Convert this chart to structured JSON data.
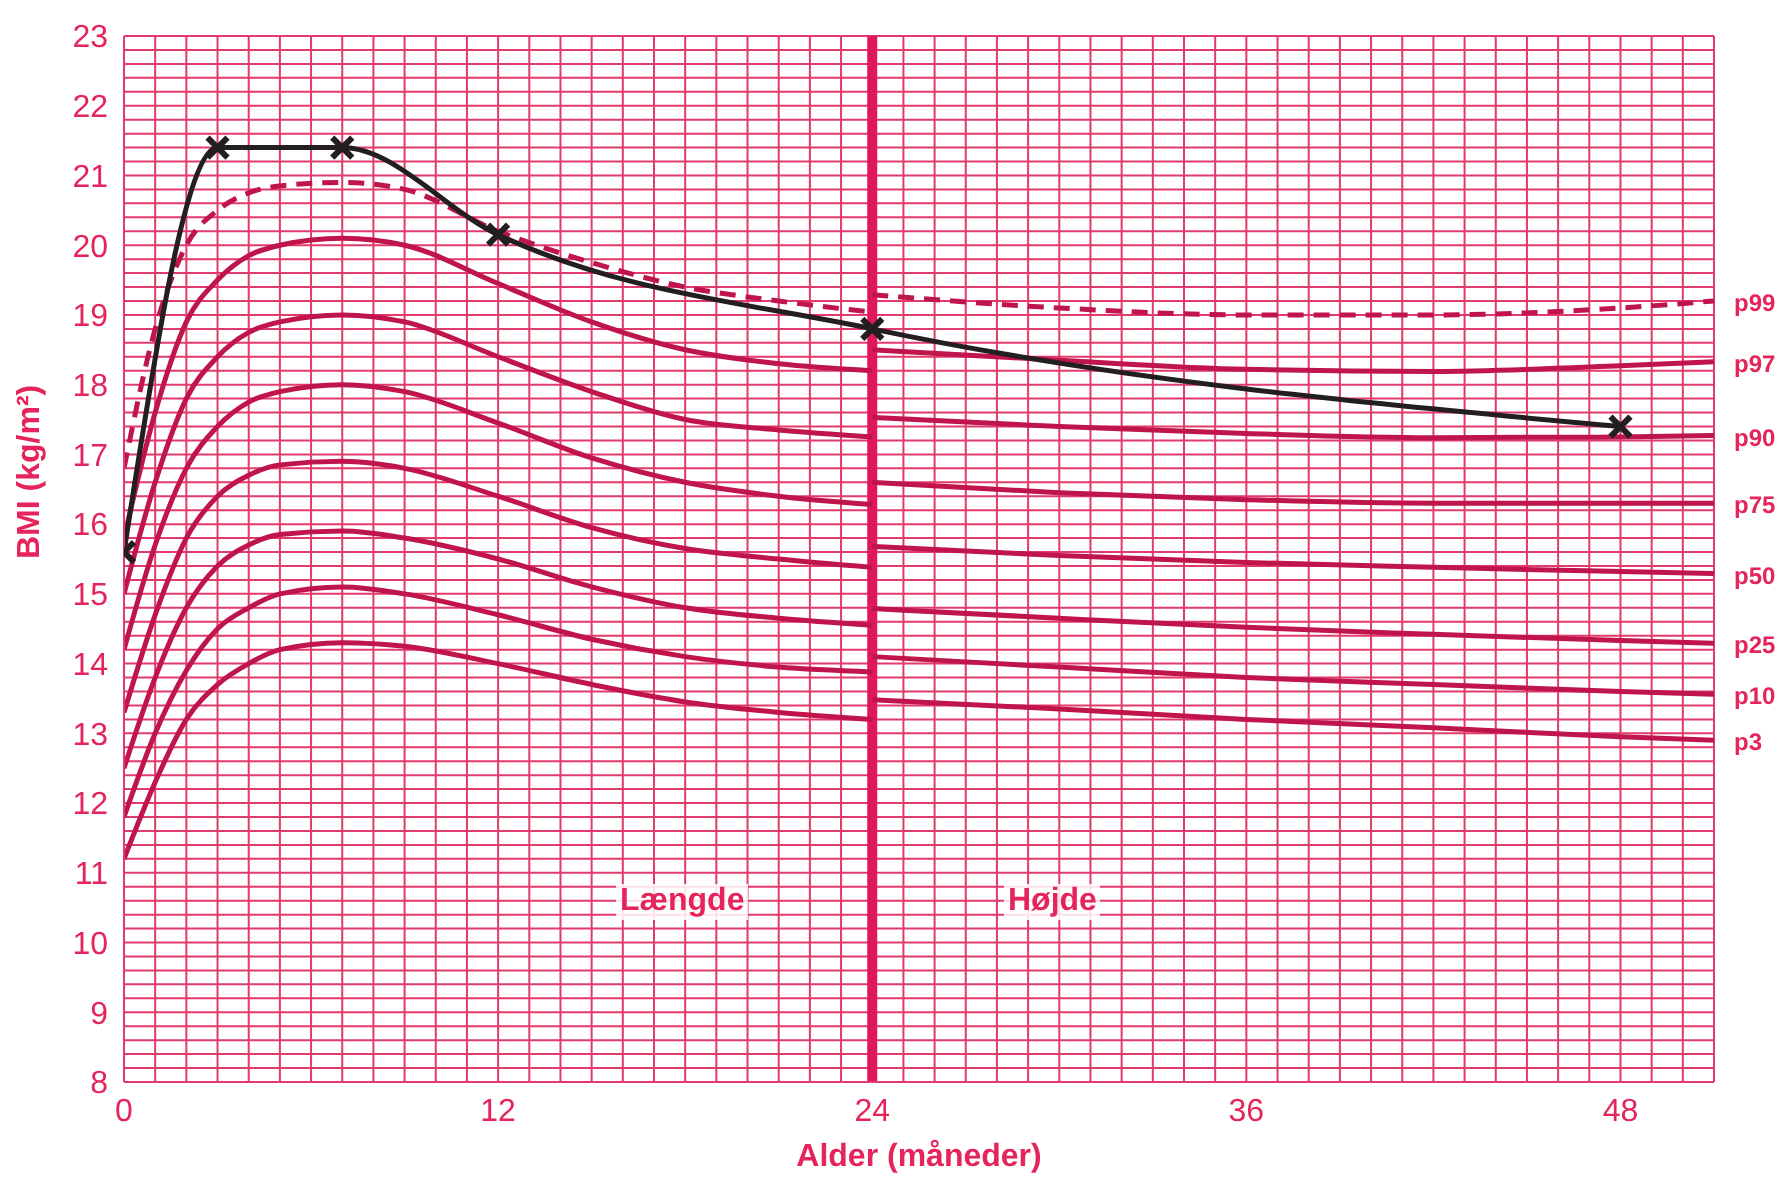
{
  "chart_data": {
    "type": "line",
    "xlabel": "Alder (måneder)",
    "ylabel": "BMI (kg/m²)",
    "xlim": [
      0,
      51
    ],
    "ylim": [
      8,
      23
    ],
    "xticks": [
      0,
      {
        "value": 1,
        "label": null
      },
      {
        "value": 2,
        "label": null
      },
      {
        "value": 3,
        "label": null
      },
      {
        "value": 4,
        "label": null
      },
      {
        "value": 5,
        "label": null
      },
      {
        "value": 6,
        "label": null
      },
      {
        "value": 7,
        "label": null
      },
      {
        "value": 8,
        "label": null
      },
      {
        "value": 9,
        "label": null
      },
      {
        "value": 10,
        "label": null
      },
      {
        "value": 11,
        "label": null
      },
      12,
      {
        "value": 13,
        "label": null
      },
      {
        "value": 14,
        "label": null
      },
      {
        "value": 15,
        "label": null
      },
      {
        "value": 16,
        "label": null
      },
      {
        "value": 17,
        "label": null
      },
      {
        "value": 18,
        "label": null
      },
      {
        "value": 19,
        "label": null
      },
      {
        "value": 20,
        "label": null
      },
      {
        "value": 21,
        "label": null
      },
      {
        "value": 22,
        "label": null
      },
      {
        "value": 23,
        "label": null
      },
      24,
      {
        "value": 25,
        "label": null
      },
      {
        "value": 26,
        "label": null
      },
      {
        "value": 27,
        "label": null
      },
      {
        "value": 28,
        "label": null
      },
      {
        "value": 29,
        "label": null
      },
      {
        "value": 30,
        "label": null
      },
      {
        "value": 31,
        "label": null
      },
      {
        "value": 32,
        "label": null
      },
      {
        "value": 33,
        "label": null
      },
      {
        "value": 34,
        "label": null
      },
      {
        "value": 35,
        "label": null
      },
      36,
      {
        "value": 37,
        "label": null
      },
      {
        "value": 38,
        "label": null
      },
      {
        "value": 39,
        "label": null
      },
      {
        "value": 40,
        "label": null
      },
      {
        "value": 41,
        "label": null
      },
      {
        "value": 42,
        "label": null
      },
      {
        "value": 43,
        "label": null
      },
      {
        "value": 44,
        "label": null
      },
      {
        "value": 45,
        "label": null
      },
      {
        "value": 46,
        "label": null
      },
      {
        "value": 47,
        "label": null
      },
      48,
      {
        "value": 49,
        "label": null
      },
      {
        "value": 50,
        "label": null
      },
      {
        "value": 51,
        "label": null
      }
    ],
    "yticks": [
      8,
      {
        "value": 8.2,
        "label": null
      },
      {
        "value": 8.4,
        "label": null
      },
      {
        "value": 8.6,
        "label": null
      },
      {
        "value": 8.8,
        "label": null
      },
      9,
      {
        "value": 9.2,
        "label": null
      },
      {
        "value": 9.4,
        "label": null
      },
      {
        "value": 9.6,
        "label": null
      },
      {
        "value": 9.8,
        "label": null
      },
      10,
      {
        "value": 10.2,
        "label": null
      },
      {
        "value": 10.4,
        "label": null
      },
      {
        "value": 10.6,
        "label": null
      },
      {
        "value": 10.8,
        "label": null
      },
      11,
      {
        "value": 11.2,
        "label": null
      },
      {
        "value": 11.4,
        "label": null
      },
      {
        "value": 11.6,
        "label": null
      },
      {
        "value": 11.8,
        "label": null
      },
      12,
      {
        "value": 12.2,
        "label": null
      },
      {
        "value": 12.4,
        "label": null
      },
      {
        "value": 12.6,
        "label": null
      },
      {
        "value": 12.8,
        "label": null
      },
      13,
      {
        "value": 13.2,
        "label": null
      },
      {
        "value": 13.4,
        "label": null
      },
      {
        "value": 13.6,
        "label": null
      },
      {
        "value": 13.8,
        "label": null
      },
      14,
      {
        "value": 14.2,
        "label": null
      },
      {
        "value": 14.4,
        "label": null
      },
      {
        "value": 14.6,
        "label": null
      },
      {
        "value": 14.8,
        "label": null
      },
      15,
      {
        "value": 15.2,
        "label": null
      },
      {
        "value": 15.4,
        "label": null
      },
      {
        "value": 15.6,
        "label": null
      },
      {
        "value": 15.8,
        "label": null
      },
      16,
      {
        "value": 16.2,
        "label": null
      },
      {
        "value": 16.4,
        "label": null
      },
      {
        "value": 16.6,
        "label": null
      },
      {
        "value": 16.8,
        "label": null
      },
      17,
      {
        "value": 17.2,
        "label": null
      },
      {
        "value": 17.4,
        "label": null
      },
      {
        "value": 17.6,
        "label": null
      },
      {
        "value": 17.8,
        "label": null
      },
      18,
      {
        "value": 18.2,
        "label": null
      },
      {
        "value": 18.4,
        "label": null
      },
      {
        "value": 18.6,
        "label": null
      },
      {
        "value": 18.8,
        "label": null
      },
      19,
      {
        "value": 19.2,
        "label": null
      },
      {
        "value": 19.4,
        "label": null
      },
      {
        "value": 19.6,
        "label": null
      },
      {
        "value": 19.8,
        "label": null
      },
      20,
      {
        "value": 20.2,
        "label": null
      },
      {
        "value": 20.4,
        "label": null
      },
      {
        "value": 20.6,
        "label": null
      },
      {
        "value": 20.8,
        "label": null
      },
      21,
      {
        "value": 21.2,
        "label": null
      },
      {
        "value": 21.4,
        "label": null
      },
      {
        "value": 21.6,
        "label": null
      },
      {
        "value": 21.8,
        "label": null
      },
      22,
      {
        "value": 22.2,
        "label": null
      },
      {
        "value": 22.4,
        "label": null
      },
      {
        "value": 22.6,
        "label": null
      },
      {
        "value": 22.8,
        "label": null
      },
      23
    ],
    "grid": true,
    "marker": "none",
    "line_style": "solid",
    "x": [
      0,
      1,
      2,
      3,
      4,
      5,
      7,
      9,
      12,
      15,
      18,
      21,
      24
    ],
    "series": [
      {
        "color": "#c0144c",
        "values": [
          11.2,
          12.3,
          13.2,
          13.7,
          14.0,
          14.2,
          14.3,
          14.25,
          14.0,
          13.7,
          13.45,
          13.3,
          13.2
        ]
      },
      {
        "color": "#c0144c",
        "values": [
          11.8,
          13.0,
          13.9,
          14.5,
          14.8,
          15.0,
          15.1,
          15.0,
          14.7,
          14.35,
          14.1,
          13.95,
          13.88
        ]
      },
      {
        "color": "#c0144c",
        "values": [
          12.5,
          13.8,
          14.8,
          15.4,
          15.7,
          15.85,
          15.9,
          15.8,
          15.5,
          15.1,
          14.8,
          14.65,
          14.55
        ]
      },
      {
        "color": "#c0144c",
        "values": [
          13.3,
          14.7,
          15.8,
          16.4,
          16.7,
          16.85,
          16.9,
          16.8,
          16.4,
          15.95,
          15.65,
          15.5,
          15.38
        ]
      },
      {
        "color": "#c0144c",
        "values": [
          14.2,
          15.7,
          16.8,
          17.4,
          17.75,
          17.9,
          18.0,
          17.9,
          17.45,
          16.95,
          16.6,
          16.4,
          16.28
        ]
      },
      {
        "color": "#c0144c",
        "values": [
          15.0,
          16.6,
          17.8,
          18.4,
          18.75,
          18.9,
          19.0,
          18.9,
          18.4,
          17.9,
          17.5,
          17.35,
          17.25
        ]
      },
      {
        "color": "#c0144c",
        "values": [
          15.8,
          17.6,
          18.9,
          19.5,
          19.85,
          20.0,
          20.1,
          20.0,
          19.45,
          18.9,
          18.5,
          18.3,
          18.2
        ]
      },
      {
        "color": "#c0144c",
        "line_style": "dashed",
        "values": [
          16.8,
          18.8,
          20.0,
          20.5,
          20.75,
          20.85,
          20.9,
          20.8,
          20.2,
          19.75,
          19.4,
          19.2,
          19.04
        ]
      },
      {
        "name": "p3",
        "color": "#c0144c",
        "x": [
          24,
          30,
          36,
          42,
          48,
          51
        ],
        "values": [
          13.48,
          13.35,
          13.2,
          13.08,
          12.95,
          12.9
        ]
      },
      {
        "name": "p10",
        "color": "#c0144c",
        "x": [
          24,
          30,
          36,
          42,
          48,
          51
        ],
        "values": [
          14.1,
          13.95,
          13.8,
          13.7,
          13.6,
          13.56
        ]
      },
      {
        "name": "p25",
        "color": "#c0144c",
        "x": [
          24,
          30,
          36,
          42,
          48,
          51
        ],
        "values": [
          14.79,
          14.65,
          14.52,
          14.42,
          14.33,
          14.29
        ]
      },
      {
        "name": "p50",
        "color": "#c0144c",
        "x": [
          24,
          30,
          36,
          42,
          48,
          51
        ],
        "values": [
          15.68,
          15.55,
          15.45,
          15.38,
          15.32,
          15.29
        ]
      },
      {
        "name": "p75",
        "color": "#c0144c",
        "x": [
          24,
          30,
          36,
          42,
          48,
          51
        ],
        "values": [
          16.6,
          16.45,
          16.35,
          16.3,
          16.3,
          16.3
        ]
      },
      {
        "name": "p90",
        "color": "#c0144c",
        "x": [
          24,
          30,
          36,
          42,
          48,
          51
        ],
        "values": [
          17.53,
          17.4,
          17.3,
          17.24,
          17.25,
          17.27
        ]
      },
      {
        "name": "p97",
        "color": "#c0144c",
        "x": [
          24,
          30,
          36,
          42,
          48,
          51
        ],
        "values": [
          18.5,
          18.35,
          18.22,
          18.19,
          18.27,
          18.33
        ]
      },
      {
        "name": "p99",
        "color": "#c0144c",
        "line_style": "dashed",
        "x": [
          24,
          30,
          36,
          42,
          48,
          51
        ],
        "values": [
          19.29,
          19.1,
          19.0,
          19.0,
          19.1,
          19.2
        ]
      },
      {
        "color": "#231f20",
        "marker": "cross",
        "x": [
          0,
          3,
          7,
          12,
          24,
          48
        ],
        "values": [
          15.6,
          21.4,
          21.4,
          20.15,
          18.8,
          17.4
        ]
      }
    ],
    "ref_lines": [
      {
        "axis": "x",
        "value": 24,
        "color": "#e0185a"
      }
    ],
    "annotations": [
      "Længde",
      "Højde"
    ]
  }
}
